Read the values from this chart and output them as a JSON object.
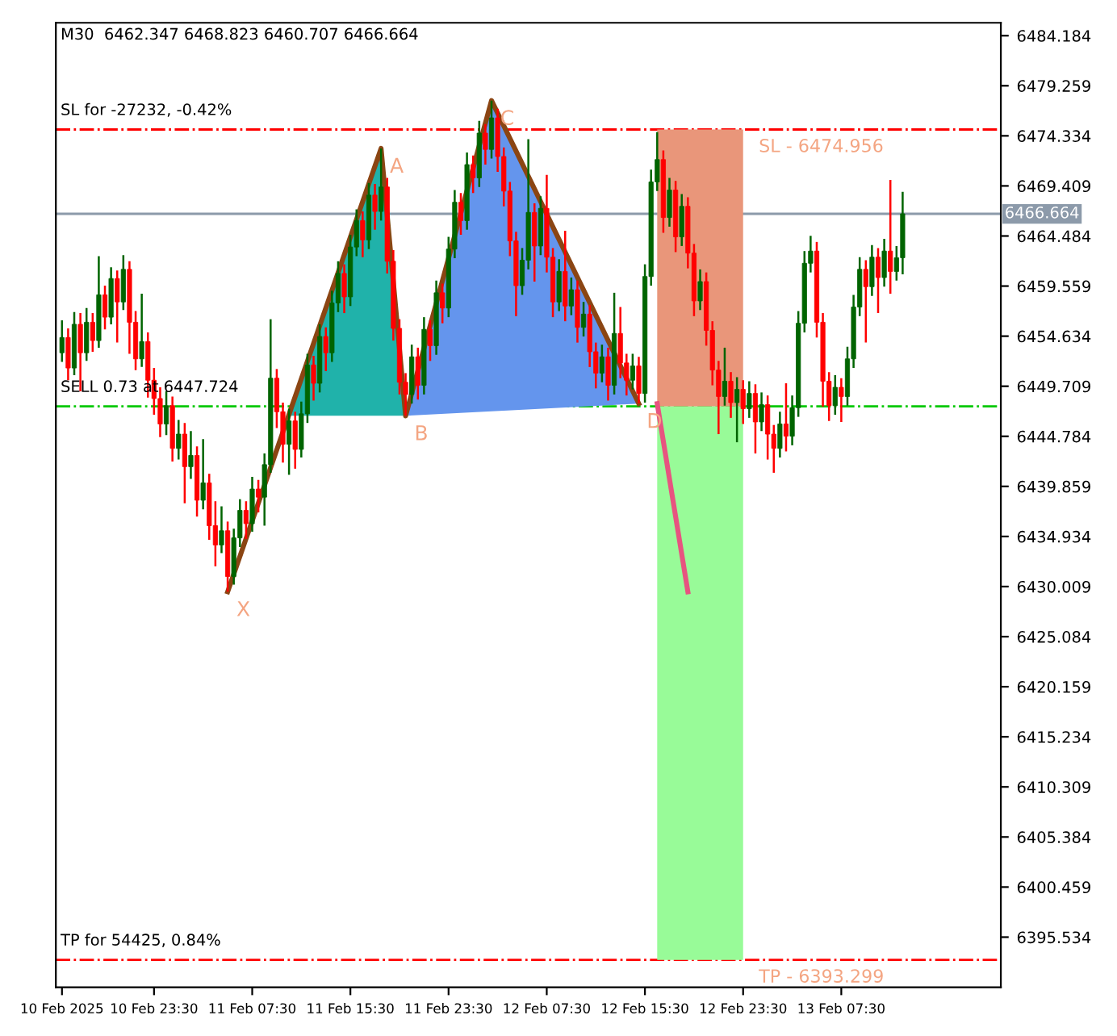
{
  "chart_data": {
    "type": "candlestick",
    "title": "M30  6462.347 6468.823 6460.707 6466.664",
    "xlim": [
      "2025-02-10T15:30",
      "2025-02-13T20:30"
    ],
    "xticks": [
      {
        "value": "2025-02-10T16:00",
        "label": "10 Feb 2025"
      },
      {
        "value": "2025-02-10T23:30",
        "label": "10 Feb 23:30"
      },
      {
        "value": "2025-02-11T07:30",
        "label": "11 Feb 07:30"
      },
      {
        "value": "2025-02-11T15:30",
        "label": "11 Feb 15:30"
      },
      {
        "value": "2025-02-11T23:30",
        "label": "11 Feb 23:30"
      },
      {
        "value": "2025-02-12T07:30",
        "label": "12 Feb 07:30"
      },
      {
        "value": "2025-02-12T15:30",
        "label": "12 Feb 15:30"
      },
      {
        "value": "2025-02-12T23:30",
        "label": "12 Feb 23:30"
      },
      {
        "value": "2025-02-13T07:30",
        "label": "13 Feb 07:30"
      }
    ],
    "ylim": [
      6390.6,
      6485.45
    ],
    "yticks": [
      6484.184,
      6479.259,
      6474.334,
      6469.409,
      6464.484,
      6459.559,
      6454.634,
      6449.709,
      6444.784,
      6439.859,
      6434.934,
      6430.009,
      6425.084,
      6420.159,
      6415.234,
      6410.309,
      6405.384,
      6400.459,
      6395.534
    ],
    "grid": false,
    "legend": false,
    "ref_lines": [
      {
        "axis": "y",
        "value": 6474.956,
        "label": "SL for -27232, -0.42%",
        "color": "#ff0000",
        "line_style": "dashdot"
      },
      {
        "axis": "y",
        "value": 6447.724,
        "label": "SELL 0.73 at 6447.724",
        "color": "#00c800",
        "line_style": "dashdot"
      },
      {
        "axis": "y",
        "value": 6393.299,
        "label": "TP for 54425, 0.84%",
        "color": "#ff0000",
        "line_style": "dashdot"
      },
      {
        "axis": "y",
        "value": 6466.664,
        "label": "6466.664",
        "color": "#8c9aaa",
        "line_style": "solid"
      }
    ],
    "annotations": [
      {
        "text": "SL - 6474.956",
        "x": "2025-02-12T23:30",
        "y": 6474.956
      },
      {
        "text": "TP - 6393.299",
        "x": "2025-02-12T23:30",
        "y": 6393.299
      },
      {
        "text": "X",
        "x": "2025-02-11T05:30",
        "y": 6429.5
      },
      {
        "text": "A",
        "x": "2025-02-11T18:00",
        "y": 6473.1
      },
      {
        "text": "B",
        "x": "2025-02-11T20:00",
        "y": 6446.8
      },
      {
        "text": "C",
        "x": "2025-02-12T03:00",
        "y": 6477.8
      },
      {
        "text": "D",
        "x": "2025-02-12T15:00",
        "y": 6448.0
      }
    ],
    "series": [
      {
        "type": "bar",
        "color": "#e9967a",
        "x": [
          "2025-02-12T20:00"
        ],
        "base": [
          6447.724
        ],
        "values": [
          27.232
        ]
      },
      {
        "type": "bar",
        "color": "#98fb98",
        "x": [
          "2025-02-12T20:00"
        ],
        "base": [
          6393.299
        ],
        "values": [
          54.425
        ]
      },
      {
        "type": "line",
        "color": "#8b4513",
        "x": [
          "2025-02-11T05:30",
          "2025-02-11T18:00",
          "2025-02-11T20:00",
          "2025-02-12T03:00",
          "2025-02-12T15:00"
        ],
        "values": [
          6429.5,
          6473.1,
          6446.8,
          6477.8,
          6448.0
        ]
      },
      {
        "type": "line",
        "color": "#e75480",
        "x": [
          "2025-02-12T16:30",
          "2025-02-12T19:00"
        ],
        "values": [
          6448.0,
          6429.5
        ]
      },
      {
        "colors": [
          "#006400",
          "#ff0000",
          "#006400",
          "#ff0000",
          "#006400",
          "#ff0000",
          "#006400",
          "#ff0000",
          "#006400",
          "#ff0000",
          "#006400",
          "#ff0000",
          "#ff0000",
          "#006400",
          "#ff0000",
          "#ff0000",
          "#ff0000",
          "#006400",
          "#ff0000",
          "#006400",
          "#ff0000",
          "#006400",
          "#ff0000",
          "#006400",
          "#ff0000",
          "#ff0000",
          "#006400",
          "#ff0000",
          "#006400",
          "#006400",
          "#ff0000",
          "#006400",
          "#ff0000",
          "#006400",
          "#006400",
          "#ff0000",
          "#ff0000",
          "#006400",
          "#ff0000",
          "#006400",
          "#006400",
          "#ff0000",
          "#006400",
          "#ff0000",
          "#006400",
          "#006400",
          "#ff0000",
          "#006400",
          "#006400",
          "#ff0000",
          "#006400",
          "#ff0000",
          "#006400",
          "#ff0000",
          "#ff0000",
          "#ff0000",
          "#ff0000",
          "#006400",
          "#ff0000",
          "#006400",
          "#ff0000",
          "#006400",
          "#ff0000",
          "#006400",
          "#006400",
          "#ff0000",
          "#006400",
          "#ff0000",
          "#006400",
          "#ff0000",
          "#006400",
          "#ff0000",
          "#ff0000",
          "#ff0000",
          "#ff0000",
          "#006400",
          "#006400",
          "#ff0000",
          "#006400",
          "#ff0000",
          "#ff0000",
          "#006400",
          "#ff0000",
          "#006400",
          "#ff0000",
          "#006400",
          "#ff0000",
          "#ff0000",
          "#006400",
          "#ff0000",
          "#006400",
          "#ff0000",
          "#ff0000",
          "#006400",
          "#ff0000",
          "#006400",
          "#006400",
          "#006400",
          "#ff0000",
          "#006400",
          "#ff0000",
          "#006400",
          "#ff0000",
          "#ff0000",
          "#006400",
          "#ff0000",
          "#ff0000",
          "#ff0000",
          "#006400",
          "#ff0000",
          "#006400",
          "#ff0000",
          "#006400",
          "#ff0000",
          "#006400",
          "#ff0000",
          "#ff0000",
          "#006400",
          "#ff0000",
          "#006400",
          "#006400",
          "#006400",
          "#006400",
          "#ff0000",
          "#ff0000",
          "#ff0000",
          "#006400",
          "#ff0000",
          "#006400",
          "#006400",
          "#006400",
          "#ff0000",
          "#006400",
          "#ff0000",
          "#006400",
          "#ff0000",
          "#006400",
          "#006400"
        ],
        "x": [
          "2025-02-10T16:00",
          "2025-02-10T16:30",
          "2025-02-10T17:00",
          "2025-02-10T17:30",
          "2025-02-10T18:00",
          "2025-02-10T18:30",
          "2025-02-10T19:00",
          "2025-02-10T19:30",
          "2025-02-10T20:00",
          "2025-02-10T20:30",
          "2025-02-10T21:00",
          "2025-02-10T21:30",
          "2025-02-10T22:00",
          "2025-02-10T22:30",
          "2025-02-10T23:00",
          "2025-02-10T23:30",
          "2025-02-11T00:00",
          "2025-02-11T00:30",
          "2025-02-11T01:00",
          "2025-02-11T01:30",
          "2025-02-11T02:00",
          "2025-02-11T02:30",
          "2025-02-11T03:00",
          "2025-02-11T03:30",
          "2025-02-11T04:00",
          "2025-02-11T04:30",
          "2025-02-11T05:00",
          "2025-02-11T05:30",
          "2025-02-11T06:00",
          "2025-02-11T06:30",
          "2025-02-11T07:00",
          "2025-02-11T07:30",
          "2025-02-11T08:00",
          "2025-02-11T08:30",
          "2025-02-11T09:00",
          "2025-02-11T09:30",
          "2025-02-11T10:00",
          "2025-02-11T10:30",
          "2025-02-11T11:00",
          "2025-02-11T11:30",
          "2025-02-11T12:00",
          "2025-02-11T12:30",
          "2025-02-11T13:00",
          "2025-02-11T13:30",
          "2025-02-11T14:00",
          "2025-02-11T14:30",
          "2025-02-11T15:00",
          "2025-02-11T15:30",
          "2025-02-11T16:00",
          "2025-02-11T16:30",
          "2025-02-11T17:00",
          "2025-02-11T17:30",
          "2025-02-11T18:00",
          "2025-02-11T18:30",
          "2025-02-11T19:00",
          "2025-02-11T19:30",
          "2025-02-11T20:00",
          "2025-02-11T20:30",
          "2025-02-11T21:00",
          "2025-02-11T21:30",
          "2025-02-11T22:00",
          "2025-02-11T22:30",
          "2025-02-11T23:00",
          "2025-02-11T23:30",
          "2025-02-12T00:00",
          "2025-02-12T00:30",
          "2025-02-12T01:00",
          "2025-02-12T01:30",
          "2025-02-12T02:00",
          "2025-02-12T02:30",
          "2025-02-12T03:00",
          "2025-02-12T03:30",
          "2025-02-12T04:00",
          "2025-02-12T04:30",
          "2025-02-12T05:00",
          "2025-02-12T05:30",
          "2025-02-12T06:00",
          "2025-02-12T06:30",
          "2025-02-12T07:00",
          "2025-02-12T07:30",
          "2025-02-12T08:00",
          "2025-02-12T08:30",
          "2025-02-12T09:00",
          "2025-02-12T09:30",
          "2025-02-12T10:00",
          "2025-02-12T10:30",
          "2025-02-12T11:00",
          "2025-02-12T11:30",
          "2025-02-12T12:00",
          "2025-02-12T12:30",
          "2025-02-12T13:00",
          "2025-02-12T13:30",
          "2025-02-12T14:00",
          "2025-02-12T14:30",
          "2025-02-12T15:00",
          "2025-02-12T15:30",
          "2025-02-12T16:00",
          "2025-02-12T16:30",
          "2025-02-12T17:00",
          "2025-02-12T17:30",
          "2025-02-12T18:00",
          "2025-02-12T18:30",
          "2025-02-12T19:00",
          "2025-02-12T19:30",
          "2025-02-12T20:00",
          "2025-02-12T20:30",
          "2025-02-12T21:00",
          "2025-02-12T21:30",
          "2025-02-12T22:00",
          "2025-02-12T22:30",
          "2025-02-12T23:00",
          "2025-02-12T23:30",
          "2025-02-13T00:00",
          "2025-02-13T00:30",
          "2025-02-13T01:00",
          "2025-02-13T01:30",
          "2025-02-13T02:00",
          "2025-02-13T02:30",
          "2025-02-13T03:00",
          "2025-02-13T03:30",
          "2025-02-13T04:00",
          "2025-02-13T04:30",
          "2025-02-13T05:00",
          "2025-02-13T05:30",
          "2025-02-13T06:00",
          "2025-02-13T06:30",
          "2025-02-13T07:00",
          "2025-02-13T07:30",
          "2025-02-13T08:00",
          "2025-02-13T08:30",
          "2025-02-13T09:00",
          "2025-02-13T09:30",
          "2025-02-13T10:00",
          "2025-02-13T10:30",
          "2025-02-13T11:00",
          "2025-02-13T11:30",
          "2025-02-13T12:00",
          "2025-02-13T12:30"
        ],
        "ohlc": [
          [
            6453.0,
            6456.2,
            6452.1,
            6454.5
          ],
          [
            6454.5,
            6455.4,
            6450.3,
            6451.5
          ],
          [
            6451.5,
            6457.0,
            6450.8,
            6455.8
          ],
          [
            6455.8,
            6456.9,
            6449.2,
            6453.0
          ],
          [
            6453.0,
            6457.4,
            6452.2,
            6456.0
          ],
          [
            6456.0,
            6456.9,
            6453.1,
            6454.2
          ],
          [
            6454.2,
            6462.5,
            6453.5,
            6458.7
          ],
          [
            6458.7,
            6459.6,
            6455.3,
            6456.5
          ],
          [
            6456.5,
            6461.4,
            6455.8,
            6460.3
          ],
          [
            6460.3,
            6461.1,
            6454.0,
            6458.0
          ],
          [
            6458.0,
            6462.6,
            6457.2,
            6461.2
          ],
          [
            6461.2,
            6462.0,
            6452.9,
            6456.0
          ],
          [
            6456.0,
            6457.1,
            6451.3,
            6452.4
          ],
          [
            6452.4,
            6458.8,
            6451.6,
            6454.1
          ],
          [
            6454.1,
            6455.0,
            6448.6,
            6450.3
          ],
          [
            6450.3,
            6451.5,
            6446.9,
            6448.5
          ],
          [
            6448.5,
            6449.6,
            6444.7,
            6446.0
          ],
          [
            6446.0,
            6449.2,
            6444.9,
            6447.8
          ],
          [
            6447.8,
            6448.7,
            6442.3,
            6443.6
          ],
          [
            6443.6,
            6446.4,
            6442.5,
            6445.0
          ],
          [
            6445.0,
            6446.1,
            6438.2,
            6441.8
          ],
          [
            6441.8,
            6445.3,
            6440.6,
            6442.9
          ],
          [
            6442.9,
            6443.8,
            6436.9,
            6438.5
          ],
          [
            6438.5,
            6444.5,
            6437.6,
            6440.2
          ],
          [
            6440.2,
            6441.1,
            6434.6,
            6436.0
          ],
          [
            6436.0,
            6438.4,
            6432.0,
            6434.1
          ],
          [
            6434.1,
            6437.9,
            6433.3,
            6435.5
          ],
          [
            6435.5,
            6436.4,
            6429.5,
            6431.0
          ],
          [
            6431.0,
            6435.7,
            6430.2,
            6434.8
          ],
          [
            6434.8,
            6438.6,
            6433.9,
            6437.5
          ],
          [
            6437.5,
            6438.4,
            6434.7,
            6436.2
          ],
          [
            6436.2,
            6440.8,
            6435.4,
            6439.6
          ],
          [
            6439.6,
            6440.5,
            6437.3,
            6438.8
          ],
          [
            6438.8,
            6443.1,
            6436.0,
            6442.0
          ],
          [
            6442.0,
            6456.3,
            6441.2,
            6450.5
          ],
          [
            6450.5,
            6451.4,
            6445.6,
            6447.2
          ],
          [
            6447.2,
            6448.1,
            6442.2,
            6444.0
          ],
          [
            6444.0,
            6447.5,
            6441.0,
            6446.3
          ],
          [
            6446.3,
            6447.2,
            6441.6,
            6443.5
          ],
          [
            6443.5,
            6448.2,
            6442.7,
            6447.0
          ],
          [
            6447.0,
            6452.9,
            6446.1,
            6451.8
          ],
          [
            6451.8,
            6452.7,
            6448.3,
            6450.0
          ],
          [
            6450.0,
            6455.8,
            6449.1,
            6454.6
          ],
          [
            6454.6,
            6455.5,
            6451.2,
            6453.0
          ],
          [
            6453.0,
            6459.1,
            6452.1,
            6457.9
          ],
          [
            6457.9,
            6462.0,
            6457.0,
            6460.8
          ],
          [
            6460.8,
            6461.7,
            6456.9,
            6458.5
          ],
          [
            6458.5,
            6464.6,
            6457.6,
            6463.4
          ],
          [
            6463.4,
            6467.1,
            6462.5,
            6466.0
          ],
          [
            6466.0,
            6466.9,
            6462.4,
            6464.1
          ],
          [
            6464.1,
            6469.7,
            6463.2,
            6468.5
          ],
          [
            6468.5,
            6469.6,
            6465.1,
            6466.9
          ],
          [
            6466.9,
            6473.1,
            6466.0,
            6469.3
          ],
          [
            6469.3,
            6470.2,
            6460.8,
            6462.0
          ],
          [
            6462.0,
            6463.1,
            6454.2,
            6455.4
          ],
          [
            6455.4,
            6456.3,
            6448.9,
            6450.1
          ],
          [
            6450.1,
            6451.0,
            6446.8,
            6448.9
          ],
          [
            6448.9,
            6453.8,
            6448.0,
            6452.6
          ],
          [
            6452.6,
            6453.5,
            6448.4,
            6449.8
          ],
          [
            6449.8,
            6456.5,
            6448.9,
            6455.3
          ],
          [
            6455.3,
            6456.2,
            6452.2,
            6453.7
          ],
          [
            6453.7,
            6460.1,
            6452.8,
            6458.9
          ],
          [
            6458.9,
            6459.8,
            6455.9,
            6457.4
          ],
          [
            6457.4,
            6464.4,
            6456.5,
            6463.2
          ],
          [
            6463.2,
            6469.0,
            6462.3,
            6467.8
          ],
          [
            6467.8,
            6468.7,
            6464.6,
            6466.0
          ],
          [
            6466.0,
            6472.7,
            6465.1,
            6471.5
          ],
          [
            6471.5,
            6472.4,
            6468.7,
            6470.2
          ],
          [
            6470.2,
            6475.8,
            6469.3,
            6474.6
          ],
          [
            6474.6,
            6475.5,
            6471.5,
            6473.0
          ],
          [
            6473.0,
            6477.8,
            6472.1,
            6476.1
          ],
          [
            6476.1,
            6477.0,
            6470.8,
            6472.3
          ],
          [
            6472.3,
            6473.2,
            6467.4,
            6468.9
          ],
          [
            6468.9,
            6469.8,
            6462.5,
            6464.0
          ],
          [
            6464.0,
            6464.9,
            6456.6,
            6459.6
          ],
          [
            6459.6,
            6463.3,
            6458.7,
            6462.1
          ],
          [
            6462.1,
            6474.0,
            6461.2,
            6466.8
          ],
          [
            6466.8,
            6467.7,
            6460.0,
            6463.5
          ],
          [
            6463.5,
            6468.4,
            6462.6,
            6467.2
          ],
          [
            6467.2,
            6470.5,
            6460.9,
            6462.4
          ],
          [
            6462.4,
            6463.3,
            6456.5,
            6458.0
          ],
          [
            6458.0,
            6462.2,
            6457.1,
            6461.0
          ],
          [
            6461.0,
            6465.0,
            6456.1,
            6457.6
          ],
          [
            6457.6,
            6460.4,
            6456.7,
            6459.2
          ],
          [
            6459.2,
            6460.1,
            6454.0,
            6455.5
          ],
          [
            6455.5,
            6458.0,
            6454.6,
            6456.8
          ],
          [
            6456.8,
            6457.7,
            6451.6,
            6453.1
          ],
          [
            6453.1,
            6454.0,
            6449.5,
            6451.0
          ],
          [
            6451.0,
            6453.8,
            6450.1,
            6452.6
          ],
          [
            6452.6,
            6453.5,
            6448.3,
            6449.8
          ],
          [
            6449.8,
            6458.9,
            6448.9,
            6454.9
          ],
          [
            6454.9,
            6457.5,
            6450.5,
            6452.0
          ],
          [
            6452.0,
            6452.9,
            6448.8,
            6450.3
          ],
          [
            6450.3,
            6452.9,
            6449.4,
            6451.7
          ],
          [
            6451.7,
            6452.6,
            6448.0,
            6449.0
          ],
          [
            6449.0,
            6461.7,
            6448.1,
            6460.5
          ],
          [
            6460.5,
            6471.0,
            6459.6,
            6469.8
          ],
          [
            6469.8,
            6474.7,
            6468.9,
            6472.0
          ],
          [
            6472.0,
            6472.9,
            6464.8,
            6466.3
          ],
          [
            6466.3,
            6470.2,
            6465.4,
            6469.0
          ],
          [
            6469.0,
            6469.9,
            6462.9,
            6464.4
          ],
          [
            6464.4,
            6468.6,
            6463.5,
            6467.4
          ],
          [
            6467.4,
            6468.3,
            6461.3,
            6462.8
          ],
          [
            6462.8,
            6463.7,
            6456.6,
            6458.1
          ],
          [
            6458.1,
            6461.2,
            6457.2,
            6460.0
          ],
          [
            6460.0,
            6460.9,
            6453.7,
            6455.2
          ],
          [
            6455.2,
            6456.1,
            6449.8,
            6451.3
          ],
          [
            6451.3,
            6452.2,
            6445.0,
            6448.7
          ],
          [
            6448.7,
            6453.5,
            6447.8,
            6450.2
          ],
          [
            6450.2,
            6451.1,
            6446.6,
            6448.1
          ],
          [
            6448.1,
            6450.6,
            6444.2,
            6449.4
          ],
          [
            6449.4,
            6450.3,
            6446.0,
            6447.5
          ],
          [
            6447.5,
            6450.2,
            6446.6,
            6449.0
          ],
          [
            6449.0,
            6449.9,
            6443.1,
            6446.2
          ],
          [
            6446.2,
            6449.1,
            6445.3,
            6447.9
          ],
          [
            6447.9,
            6448.8,
            6442.5,
            6445.0
          ],
          [
            6445.0,
            6445.9,
            6441.2,
            6443.6
          ],
          [
            6443.6,
            6447.2,
            6442.7,
            6446.0
          ],
          [
            6446.0,
            6450.0,
            6443.3,
            6444.8
          ],
          [
            6444.8,
            6448.8,
            6443.9,
            6447.6
          ],
          [
            6447.6,
            6457.1,
            6446.7,
            6455.9
          ],
          [
            6455.9,
            6463.0,
            6455.0,
            6461.8
          ],
          [
            6461.8,
            6464.5,
            6460.9,
            6463.0
          ],
          [
            6463.0,
            6463.9,
            6454.5,
            6456.0
          ],
          [
            6456.0,
            6456.9,
            6447.7,
            6450.2
          ],
          [
            6450.2,
            6451.1,
            6446.3,
            6447.8
          ],
          [
            6447.8,
            6450.8,
            6446.9,
            6449.6
          ],
          [
            6449.6,
            6450.5,
            6446.2,
            6448.7
          ],
          [
            6448.7,
            6453.6,
            6447.8,
            6452.4
          ],
          [
            6452.4,
            6458.7,
            6451.5,
            6457.5
          ],
          [
            6457.5,
            6462.4,
            6456.6,
            6461.2
          ],
          [
            6461.2,
            6462.1,
            6454.0,
            6459.5
          ],
          [
            6459.5,
            6463.6,
            6458.6,
            6462.4
          ],
          [
            6462.4,
            6463.3,
            6456.9,
            6460.4
          ],
          [
            6460.4,
            6464.2,
            6459.5,
            6463.0
          ],
          [
            6463.0,
            6470.0,
            6458.8,
            6461.0
          ],
          [
            6461.0,
            6463.5,
            6460.1,
            6462.347
          ],
          [
            6462.347,
            6468.823,
            6460.707,
            6466.664
          ]
        ]
      }
    ]
  }
}
